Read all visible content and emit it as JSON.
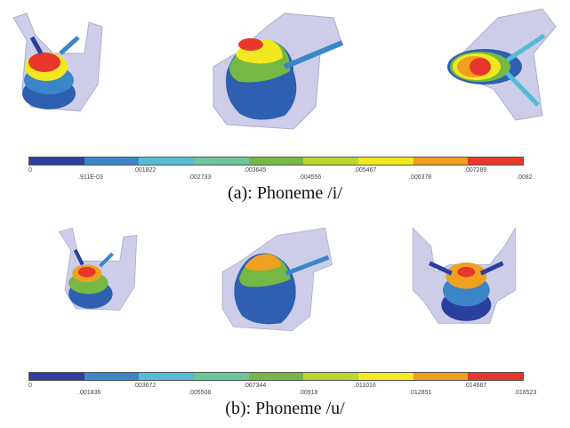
{
  "figure_a": {
    "caption": "(a): Phoneme /i/",
    "legend_colors": [
      "#2b3f9e",
      "#3a86c8",
      "#52bcd6",
      "#6cc79a",
      "#75b845",
      "#bcd62f",
      "#f3e81f",
      "#f0a01f",
      "#e8362a"
    ],
    "legend_ticks": [
      "0",
      ".911E-03",
      ".001822",
      ".002733",
      ".003645",
      ".004556",
      ".005467",
      ".006378",
      ".007289",
      ".0082"
    ]
  },
  "figure_b": {
    "caption": "(b): Phoneme /u/",
    "legend_colors": [
      "#2b3f9e",
      "#3a86c8",
      "#52bcd6",
      "#6cc79a",
      "#75b845",
      "#bcd62f",
      "#f3e81f",
      "#f0a01f",
      "#e8362a"
    ],
    "legend_ticks": [
      "0",
      ".001836",
      ".003672",
      ".005508",
      ".007344",
      ".00918",
      ".011016",
      ".012851",
      ".014687",
      ".016523"
    ]
  }
}
